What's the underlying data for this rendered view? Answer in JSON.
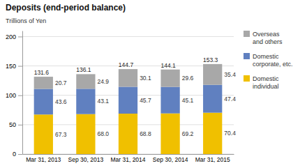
{
  "chart_data": {
    "type": "bar",
    "stacked": true,
    "title": "Deposits (end-period balance)",
    "ylabel": "Trillions of Yen",
    "categories": [
      "Mar 31, 2013",
      "Sep 30, 2013",
      "Mar 31, 2014",
      "Sep 30, 2014",
      "Mar 31, 2015"
    ],
    "series": [
      {
        "name": "Domestic\nindividual",
        "color": "#f0c000",
        "values": [
          67.3,
          68.0,
          68.8,
          69.2,
          70.4
        ],
        "value_labels": [
          "67.3",
          "68.0",
          "68.8",
          "69.2",
          "70.4"
        ]
      },
      {
        "name": "Domestic\ncorporate, etc.",
        "color": "#6080c0",
        "values": [
          43.6,
          43.1,
          45.7,
          45.1,
          47.4
        ]
      },
      {
        "name": "Overseas\nand others",
        "color": "#a8a8a8",
        "values": [
          20.7,
          24.9,
          30.1,
          29.6,
          35.4
        ]
      }
    ],
    "totals": [
      131.6,
      136.1,
      144.7,
      144.1,
      153.3
    ],
    "ylim": [
      0,
      210
    ],
    "yticks": [
      0,
      50,
      100,
      150,
      200
    ],
    "grid": true,
    "legend": "right",
    "data_labels": true
  }
}
